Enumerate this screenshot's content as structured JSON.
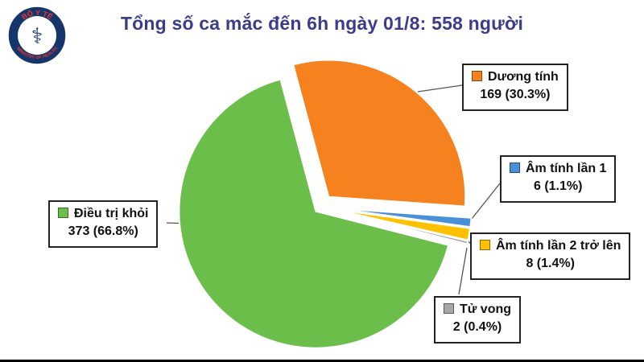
{
  "logo": {
    "top_text": "BỘ Y TẾ",
    "bottom_text": "MINISTRY OF HEALTH"
  },
  "chart_data": {
    "type": "pie",
    "title": "Tổng số ca mắc đến 6h ngày 01/8: 558 người",
    "total": 558,
    "direction": "clockwise",
    "start_angle_deg": -15,
    "legend_position": "callout-labels",
    "slices": [
      {
        "label": "Dương tính",
        "value": 169,
        "pct": 30.3,
        "display": "169 (30.3%)",
        "color": "#F5821F"
      },
      {
        "label": "Âm tính lần 1",
        "value": 6,
        "pct": 1.1,
        "display": "6 (1.1%)",
        "color": "#4A90D9"
      },
      {
        "label": "Âm tính lần 2 trở lên",
        "value": 8,
        "pct": 1.4,
        "display": "8 (1.4%)",
        "color": "#FFC000"
      },
      {
        "label": "Tử vong",
        "value": 2,
        "pct": 0.4,
        "display": "2 (0.4%)",
        "color": "#A6A6A6"
      },
      {
        "label": "Điều trị khỏi",
        "value": 373,
        "pct": 66.8,
        "display": "373 (66.8%)",
        "color": "#6CBE4B"
      }
    ]
  }
}
